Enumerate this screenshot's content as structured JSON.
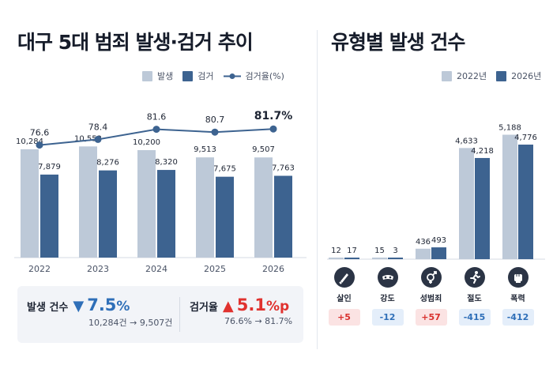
{
  "left": {
    "title": "대구 5대 범죄 발생·검거 추이",
    "legend": {
      "occur": "발생",
      "arrest": "검거",
      "rate": "검거율(%)"
    }
  },
  "right": {
    "title": "유형별 발생 건수",
    "legend": {
      "y2022": "2022년",
      "y2026": "2026년"
    }
  },
  "summary": {
    "occur": {
      "label": "발생 건수",
      "arrow": "▼",
      "value": "7.5",
      "unit": "%",
      "sub": "10,284건 → 9,507건"
    },
    "rate": {
      "label": "검거율",
      "arrow": "▲",
      "value": "5.1",
      "unit": "%p",
      "sub": "76.6% → 81.7%"
    }
  },
  "colors": {
    "occur": "#bdc9d8",
    "arrest": "#3d6390",
    "line": "#3d6390",
    "up": "#e0322f",
    "down": "#2f6fb8"
  },
  "chart_data": [
    {
      "type": "bar",
      "categories": [
        "2022",
        "2023",
        "2024",
        "2025",
        "2026"
      ],
      "series": [
        {
          "name": "발생",
          "values": [
            10284,
            10552,
            10200,
            9513,
            9507
          ],
          "labels": [
            "10,284",
            "10,552",
            "10,200",
            "9,513",
            "9,507"
          ]
        },
        {
          "name": "검거",
          "values": [
            7879,
            8276,
            8320,
            7675,
            7763
          ],
          "labels": [
            "7,879",
            "8,276",
            "8,320",
            "7,675",
            "7,763"
          ]
        }
      ],
      "line": {
        "name": "검거율(%)",
        "values": [
          76.6,
          78.4,
          81.6,
          80.7,
          81.7
        ],
        "labels": [
          "76.6",
          "78.4",
          "81.6",
          "80.7",
          "81.7%"
        ]
      },
      "ylim": [
        0,
        12000
      ],
      "line_ylim": [
        60,
        100
      ],
      "legend": "top-right",
      "grid": false
    },
    {
      "type": "bar",
      "categories": [
        "살인",
        "강도",
        "성범죄",
        "절도",
        "폭력"
      ],
      "icons": [
        "knife-icon",
        "mask-icon",
        "gender-icon",
        "runner-icon",
        "fist-icon"
      ],
      "series": [
        {
          "name": "2022년",
          "values": [
            12,
            15,
            436,
            4633,
            5188
          ],
          "labels": [
            "12",
            "15",
            "436",
            "4,633",
            "5,188"
          ]
        },
        {
          "name": "2026년",
          "values": [
            17,
            3,
            493,
            4218,
            4776
          ],
          "labels": [
            "17",
            "3",
            "493",
            "4,218",
            "4,776"
          ]
        }
      ],
      "differences": [
        "+5",
        "-12",
        "+57",
        "-415",
        "-412"
      ],
      "ylim": [
        0,
        5600
      ],
      "legend": "top-right",
      "grid": false
    }
  ]
}
